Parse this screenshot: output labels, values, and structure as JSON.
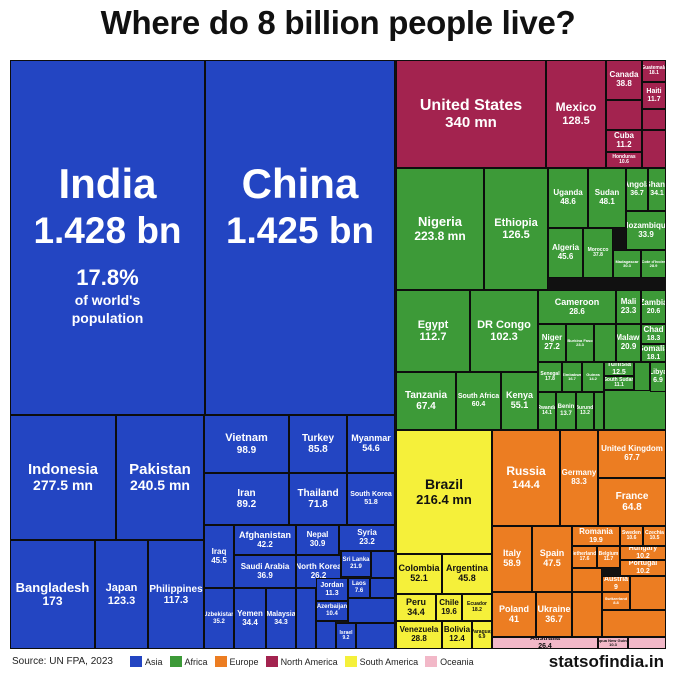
{
  "title": "Where do 8 billion people live?",
  "colors": {
    "Asia": "#2345c2",
    "Africa": "#3d9a38",
    "Europe": "#ec7d22",
    "North America": "#a3234f",
    "South America": "#f5f03a",
    "Oceania": "#f2b8c8"
  },
  "footer": {
    "source": "Source: UN FPA, 2023",
    "brand": "statsofindia.in",
    "legend": [
      {
        "label": "Asia",
        "color": "#2345c2"
      },
      {
        "label": "Africa",
        "color": "#3d9a38"
      },
      {
        "label": "Europe",
        "color": "#ec7d22"
      },
      {
        "label": "North America",
        "color": "#a3234f"
      },
      {
        "label": "South America",
        "color": "#f5f03a"
      },
      {
        "label": "Oceania",
        "color": "#f2b8c8"
      }
    ]
  },
  "chart_data": {
    "type": "treemap",
    "title": "Where do 8 billion people live?",
    "india_annotation": [
      "17.8%",
      "of world's",
      "population"
    ],
    "series": [
      {
        "name": "India",
        "value": 1428,
        "continent": "Asia",
        "label": "1.428 bn"
      },
      {
        "name": "China",
        "value": 1425,
        "continent": "Asia",
        "label": "1.425 bn"
      },
      {
        "name": "Indonesia",
        "value": 277.5,
        "continent": "Asia",
        "label": "277.5 mn"
      },
      {
        "name": "Pakistan",
        "value": 240.5,
        "continent": "Asia",
        "label": "240.5 mn"
      },
      {
        "name": "Bangladesh",
        "value": 173,
        "continent": "Asia",
        "label": "173"
      },
      {
        "name": "Japan",
        "value": 123.3,
        "continent": "Asia",
        "label": "123.3"
      },
      {
        "name": "Philippines",
        "value": 117.3,
        "continent": "Asia",
        "label": "117.3"
      },
      {
        "name": "Vietnam",
        "value": 98.9,
        "continent": "Asia",
        "label": "98.9"
      },
      {
        "name": "Turkey",
        "value": 85.8,
        "continent": "Asia",
        "label": "85.8"
      },
      {
        "name": "Myanmar",
        "value": 54.6,
        "continent": "Asia",
        "label": "54.6"
      },
      {
        "name": "Iran",
        "value": 89.2,
        "continent": "Asia",
        "label": "89.2"
      },
      {
        "name": "Thailand",
        "value": 71.8,
        "continent": "Asia",
        "label": "71.8"
      },
      {
        "name": "South Korea",
        "value": 51.8,
        "continent": "Asia",
        "label": "51.8"
      },
      {
        "name": "Iraq",
        "value": 45.5,
        "continent": "Asia",
        "label": "45.5"
      },
      {
        "name": "Afghanistan",
        "value": 42.2,
        "continent": "Asia",
        "label": "42.2"
      },
      {
        "name": "Nepal",
        "value": 30.9,
        "continent": "Asia",
        "label": "30.9"
      },
      {
        "name": "Syria",
        "value": 23.2,
        "continent": "Asia",
        "label": "23.2"
      },
      {
        "name": "Saudi Arabia",
        "value": 36.9,
        "continent": "Asia",
        "label": "36.9"
      },
      {
        "name": "North Korea",
        "value": 26.2,
        "continent": "Asia",
        "label": "26.2"
      },
      {
        "name": "Sri Lanka",
        "value": 21.9,
        "continent": "Asia",
        "label": "21.9"
      },
      {
        "name": "Uzbekistan",
        "value": 35.2,
        "continent": "Asia",
        "label": "35.2"
      },
      {
        "name": "Yemen",
        "value": 34.4,
        "continent": "Asia",
        "label": "34.4"
      },
      {
        "name": "Malaysia",
        "value": 34.3,
        "continent": "Asia",
        "label": "34.3"
      },
      {
        "name": "Jordan",
        "value": 11.3,
        "continent": "Asia",
        "label": "11.3"
      },
      {
        "name": "Laos",
        "value": 7.6,
        "continent": "Asia",
        "label": "7.6"
      },
      {
        "name": "Azerbaijan",
        "value": 10.4,
        "continent": "Asia",
        "label": "10.4"
      },
      {
        "name": "Israel",
        "value": 9.2,
        "continent": "Asia",
        "label": "9.2"
      },
      {
        "name": "United States",
        "value": 340,
        "continent": "North America",
        "label": "340 mn"
      },
      {
        "name": "Mexico",
        "value": 128.5,
        "continent": "North America",
        "label": "128.5"
      },
      {
        "name": "Canada",
        "value": 38.8,
        "continent": "North America",
        "label": "38.8"
      },
      {
        "name": "Haiti",
        "value": 11.7,
        "continent": "North America",
        "label": "11.7"
      },
      {
        "name": "Cuba",
        "value": 11.2,
        "continent": "North America",
        "label": "11.2"
      },
      {
        "name": "Honduras",
        "value": 10.6,
        "continent": "North America",
        "label": "10.6"
      },
      {
        "name": "Guatemala",
        "value": 18.1,
        "continent": "North America",
        "label": "18.1"
      },
      {
        "name": "Nigeria",
        "value": 223.8,
        "continent": "Africa",
        "label": "223.8 mn"
      },
      {
        "name": "Ethiopia",
        "value": 126.5,
        "continent": "Africa",
        "label": "126.5"
      },
      {
        "name": "Uganda",
        "value": 48.6,
        "continent": "Africa",
        "label": "48.6"
      },
      {
        "name": "Sudan",
        "value": 48.1,
        "continent": "Africa",
        "label": "48.1"
      },
      {
        "name": "Angola",
        "value": 36.7,
        "continent": "Africa",
        "label": "36.7"
      },
      {
        "name": "Ghana",
        "value": 34.1,
        "continent": "Africa",
        "label": "34.1"
      },
      {
        "name": "Mozambique",
        "value": 33.9,
        "continent": "Africa",
        "label": "33.9"
      },
      {
        "name": "Algeria",
        "value": 45.6,
        "continent": "Africa",
        "label": "45.6"
      },
      {
        "name": "Morocco",
        "value": 37.8,
        "continent": "Africa",
        "label": "37.8"
      },
      {
        "name": "Madagascar",
        "value": 30.3,
        "continent": "Africa",
        "label": "30.3"
      },
      {
        "name": "Cote d'Ivoire",
        "value": 28.9,
        "continent": "Africa",
        "label": "28.9"
      },
      {
        "name": "Egypt",
        "value": 112.7,
        "continent": "Africa",
        "label": "112.7"
      },
      {
        "name": "DR Congo",
        "value": 102.3,
        "continent": "Africa",
        "label": "102.3"
      },
      {
        "name": "Cameroon",
        "value": 28.6,
        "continent": "Africa",
        "label": "28.6"
      },
      {
        "name": "Mali",
        "value": 23.3,
        "continent": "Africa",
        "label": "23.3"
      },
      {
        "name": "Zambia",
        "value": 20.6,
        "continent": "Africa",
        "label": "20.6"
      },
      {
        "name": "Niger",
        "value": 27.2,
        "continent": "Africa",
        "label": "27.2"
      },
      {
        "name": "Burkina Faso",
        "value": 23.3,
        "continent": "Africa",
        "label": "23.3"
      },
      {
        "name": "Malawi",
        "value": 20.9,
        "continent": "Africa",
        "label": "20.9"
      },
      {
        "name": "Chad",
        "value": 18.3,
        "continent": "Africa",
        "label": "18.3"
      },
      {
        "name": "Somalia",
        "value": 18.1,
        "continent": "Africa",
        "label": "18.1"
      },
      {
        "name": "Tanzania",
        "value": 67.4,
        "continent": "Africa",
        "label": "67.4"
      },
      {
        "name": "South Africa",
        "value": 60.4,
        "continent": "Africa",
        "label": "60.4"
      },
      {
        "name": "Kenya",
        "value": 55.1,
        "continent": "Africa",
        "label": "55.1"
      },
      {
        "name": "Senegal",
        "value": 17.8,
        "continent": "Africa",
        "label": "17.8"
      },
      {
        "name": "Zimbabwe",
        "value": 16.7,
        "continent": "Africa",
        "label": "16.7"
      },
      {
        "name": "Guinea",
        "value": 14.2,
        "continent": "Africa",
        "label": "14.2"
      },
      {
        "name": "Tunisia",
        "value": 12.5,
        "continent": "Africa",
        "label": "12.5"
      },
      {
        "name": "South Sudan",
        "value": 11.1,
        "continent": "Africa",
        "label": "11.1"
      },
      {
        "name": "Libya",
        "value": 6.9,
        "continent": "Africa",
        "label": "6.9"
      },
      {
        "name": "Rwanda",
        "value": 14.1,
        "continent": "Africa",
        "label": "14.1"
      },
      {
        "name": "Benin",
        "value": 13.7,
        "continent": "Africa",
        "label": "13.7"
      },
      {
        "name": "Burundi",
        "value": 13.2,
        "continent": "Africa",
        "label": "13.2"
      },
      {
        "name": "Brazil",
        "value": 216.4,
        "continent": "South America",
        "label": "216.4 mn"
      },
      {
        "name": "Colombia",
        "value": 52.1,
        "continent": "South America",
        "label": "52.1"
      },
      {
        "name": "Argentina",
        "value": 45.8,
        "continent": "South America",
        "label": "45.8"
      },
      {
        "name": "Peru",
        "value": 34.4,
        "continent": "South America",
        "label": "34.4"
      },
      {
        "name": "Chile",
        "value": 19.6,
        "continent": "South America",
        "label": "19.6"
      },
      {
        "name": "Ecuador",
        "value": 18.2,
        "continent": "South America",
        "label": "18.2"
      },
      {
        "name": "Venezuela",
        "value": 28.8,
        "continent": "South America",
        "label": "28.8"
      },
      {
        "name": "Bolivia",
        "value": 12.4,
        "continent": "South America",
        "label": "12.4"
      },
      {
        "name": "Paraguay",
        "value": 6.9,
        "continent": "South America",
        "label": "6.9"
      },
      {
        "name": "Russia",
        "value": 144.4,
        "continent": "Europe",
        "label": "144.4"
      },
      {
        "name": "Germany",
        "value": 83.3,
        "continent": "Europe",
        "label": "83.3"
      },
      {
        "name": "United Kingdom",
        "value": 67.7,
        "continent": "Europe",
        "label": "67.7"
      },
      {
        "name": "France",
        "value": 64.8,
        "continent": "Europe",
        "label": "64.8"
      },
      {
        "name": "Italy",
        "value": 58.9,
        "continent": "Europe",
        "label": "58.9"
      },
      {
        "name": "Spain",
        "value": 47.5,
        "continent": "Europe",
        "label": "47.5"
      },
      {
        "name": "Romania",
        "value": 19.9,
        "continent": "Europe",
        "label": "19.9"
      },
      {
        "name": "Sweden",
        "value": 10.6,
        "continent": "Europe",
        "label": "10.6"
      },
      {
        "name": "Czechia",
        "value": 10.5,
        "continent": "Europe",
        "label": "10.5"
      },
      {
        "name": "Netherlands",
        "value": 17.6,
        "continent": "Europe",
        "label": "17.6"
      },
      {
        "name": "Belgium",
        "value": 11.7,
        "continent": "Europe",
        "label": "11.7"
      },
      {
        "name": "Hungary",
        "value": 10.2,
        "continent": "Europe",
        "label": "10.2"
      },
      {
        "name": "Portugal",
        "value": 10.2,
        "continent": "Europe",
        "label": "10.2"
      },
      {
        "name": "Poland",
        "value": 41,
        "continent": "Europe",
        "label": "41"
      },
      {
        "name": "Ukraine",
        "value": 36.7,
        "continent": "Europe",
        "label": "36.7"
      },
      {
        "name": "Austria",
        "value": 9,
        "continent": "Europe",
        "label": "9"
      },
      {
        "name": "Switzerland",
        "value": 8.8,
        "continent": "Europe",
        "label": "8.8"
      },
      {
        "name": "Australia",
        "value": 26.4,
        "continent": "Oceania",
        "label": "26.4"
      },
      {
        "name": "Papua New Guinea",
        "value": 10.3,
        "continent": "Oceania",
        "label": "10.3"
      }
    ]
  }
}
